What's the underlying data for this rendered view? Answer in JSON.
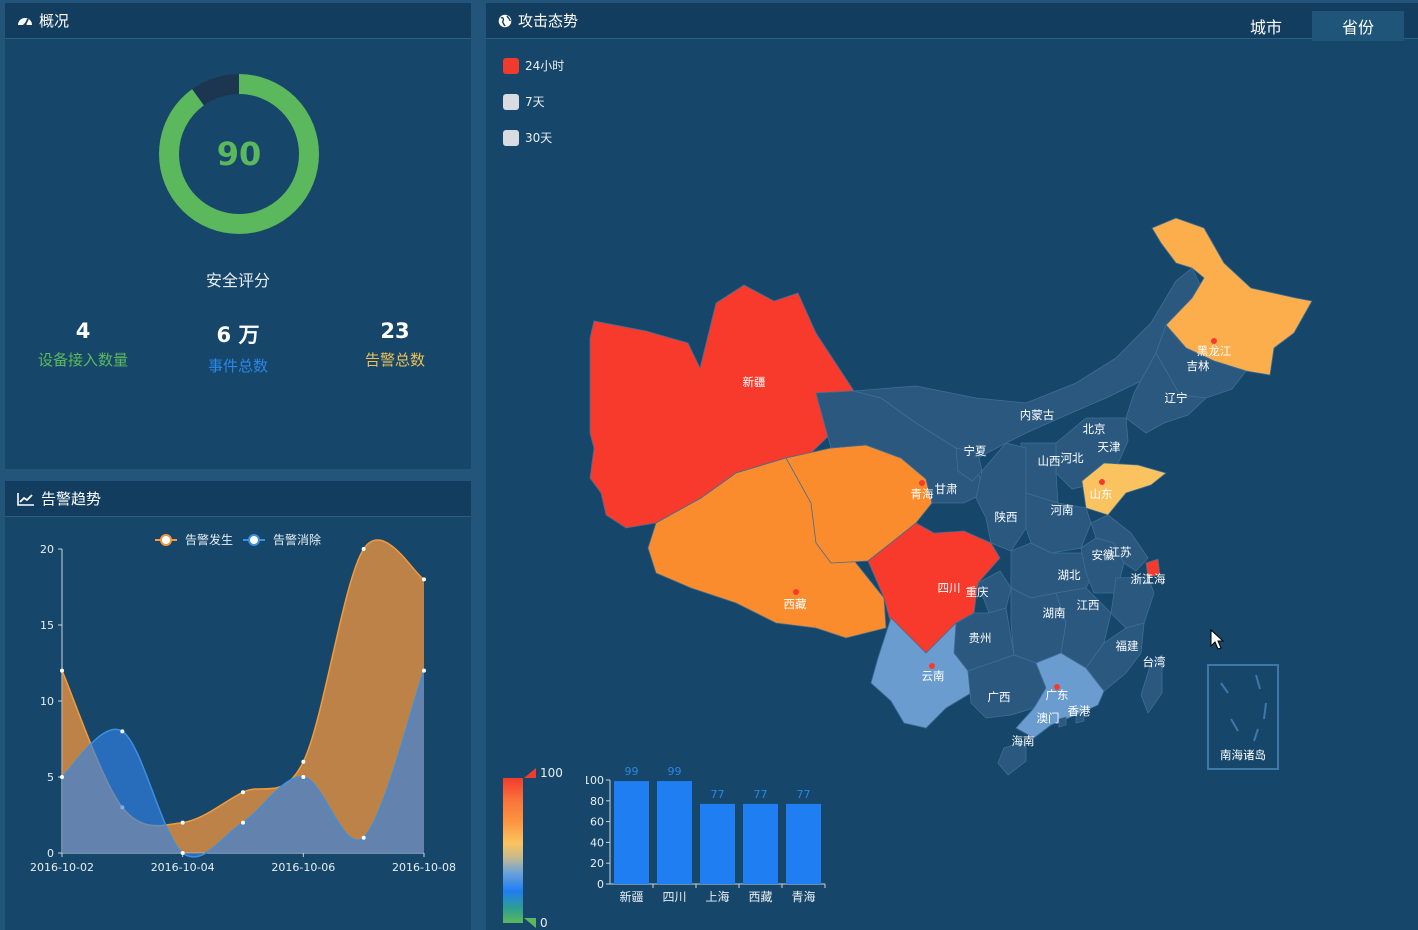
{
  "overview": {
    "title": "概况",
    "score": "90",
    "score_fraction": 0.9,
    "score_label": "安全评分",
    "stats": [
      {
        "value": "4",
        "label": "设备接入数量",
        "color": "#5cb85c"
      },
      {
        "value": "6 万",
        "label": "事件总数",
        "color": "#2a86e8"
      },
      {
        "value": "23",
        "label": "告警总数",
        "color": "#f0c054"
      }
    ]
  },
  "trend": {
    "title": "告警趋势",
    "legend": [
      "告警发生",
      "告警消除"
    ]
  },
  "chart_data": [
    {
      "type": "area",
      "x": [
        "2016-10-02",
        "2016-10-03",
        "2016-10-04",
        "2016-10-05",
        "2016-10-06",
        "2016-10-07",
        "2016-10-08"
      ],
      "x_tick_labels": [
        "2016-10-02",
        "2016-10-04",
        "2016-10-06",
        "2016-10-08"
      ],
      "series": [
        {
          "name": "告警发生",
          "values": [
            12,
            3,
            2,
            4,
            6,
            20,
            18
          ],
          "color": "#f39a3c"
        },
        {
          "name": "告警消除",
          "values": [
            5,
            8,
            0,
            2,
            5,
            1,
            12
          ],
          "color": "#3b8fe0"
        }
      ],
      "ylim": [
        0,
        20
      ],
      "y_ticks": [
        0,
        5,
        10,
        15,
        20
      ]
    },
    {
      "type": "bar",
      "categories": [
        "新疆",
        "四川",
        "上海",
        "西藏",
        "青海"
      ],
      "values": [
        99,
        99,
        77,
        77,
        77
      ],
      "ylim": [
        0,
        100
      ],
      "y_ticks": [
        0,
        20,
        40,
        60,
        80,
        100
      ],
      "color": "#1f7ef2"
    }
  ],
  "attack": {
    "title": "攻击态势",
    "tabs": [
      "城市",
      "省份"
    ],
    "active_tab": "省份",
    "legend": [
      {
        "label": "24小时",
        "color": "#f03a2e"
      },
      {
        "label": "7天",
        "color": "#d6dce2"
      },
      {
        "label": "30天",
        "color": "#d6dce2"
      }
    ],
    "visual_map": {
      "max": "100",
      "min": "0"
    },
    "provinces": [
      {
        "name": "新疆",
        "color": "#f83a2c"
      },
      {
        "name": "西藏",
        "color": "#fb8c2e"
      },
      {
        "name": "青海",
        "color": "#fb8c2e"
      },
      {
        "name": "甘肃",
        "color": "#2a587f"
      },
      {
        "name": "内蒙古",
        "color": "#2a587f"
      },
      {
        "name": "黑龙江",
        "color": "#fcae4c"
      },
      {
        "name": "吉林",
        "color": "#2a587f"
      },
      {
        "name": "辽宁",
        "color": "#2a587f"
      },
      {
        "name": "北京",
        "color": "#2a587f"
      },
      {
        "name": "天津",
        "color": "#2a587f"
      },
      {
        "name": "河北",
        "color": "#2a587f"
      },
      {
        "name": "山西",
        "color": "#2a587f"
      },
      {
        "name": "山东",
        "color": "#fbc35f"
      },
      {
        "name": "宁夏",
        "color": "#2a587f"
      },
      {
        "name": "陕西",
        "color": "#2a587f"
      },
      {
        "name": "河南",
        "color": "#2a587f"
      },
      {
        "name": "四川",
        "color": "#f83a2c"
      },
      {
        "name": "重庆",
        "color": "#2a587f"
      },
      {
        "name": "湖北",
        "color": "#2a587f"
      },
      {
        "name": "安徽",
        "color": "#2a587f"
      },
      {
        "name": "江苏",
        "color": "#2a587f"
      },
      {
        "name": "上海",
        "color": "#f83a2c"
      },
      {
        "name": "浙江",
        "color": "#2a587f"
      },
      {
        "name": "湖南",
        "color": "#2a587f"
      },
      {
        "name": "江西",
        "color": "#2a587f"
      },
      {
        "name": "贵州",
        "color": "#2a587f"
      },
      {
        "name": "云南",
        "color": "#6a9cd0"
      },
      {
        "name": "广西",
        "color": "#2a587f"
      },
      {
        "name": "广东",
        "color": "#6a9cd0"
      },
      {
        "name": "福建",
        "color": "#2a587f"
      },
      {
        "name": "台湾",
        "color": "#2a587f"
      },
      {
        "name": "海南",
        "color": "#2a587f"
      },
      {
        "name": "香港",
        "color": "#2a587f"
      },
      {
        "name": "澳门",
        "color": "#2a587f"
      }
    ],
    "south_sea_label": "南海诸岛"
  }
}
